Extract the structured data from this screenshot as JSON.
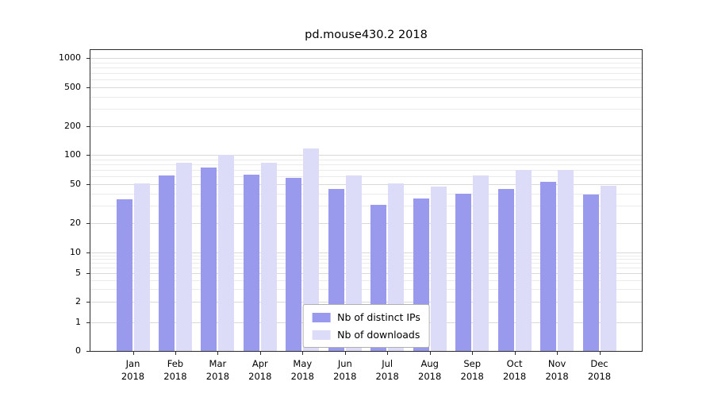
{
  "title": "pd.mouse430.2 2018",
  "chart_data": {
    "type": "bar",
    "title": "pd.mouse430.2 2018",
    "categories": [
      "Jan",
      "Feb",
      "Mar",
      "Apr",
      "May",
      "Jun",
      "Jul",
      "Aug",
      "Sep",
      "Oct",
      "Nov",
      "Dec"
    ],
    "category_year": "2018",
    "series": [
      {
        "name": "Nb of distinct IPs",
        "color": "#9999ee",
        "values": [
          35,
          62,
          74,
          63,
          58,
          45,
          31,
          36,
          40,
          45,
          53,
          39
        ]
      },
      {
        "name": "Nb of downloads",
        "color": "#dcdcf8",
        "values": [
          51,
          84,
          101,
          84,
          118,
          62,
          51,
          47,
          62,
          70,
          70,
          48
        ]
      }
    ],
    "y_ticks": [
      0,
      1,
      2,
      5,
      10,
      20,
      50,
      100,
      200,
      500,
      1000
    ],
    "ylim": [
      0,
      1300
    ],
    "yscale": "log above 1, linear 0-1",
    "grid": "horizontal log minor gridlines",
    "legend_position": "lower center",
    "xlabel": "",
    "ylabel": ""
  },
  "colors": {
    "grid_major": "#d9d9d9",
    "grid_minor": "#ebebeb",
    "axis": "#2b2b2b"
  }
}
